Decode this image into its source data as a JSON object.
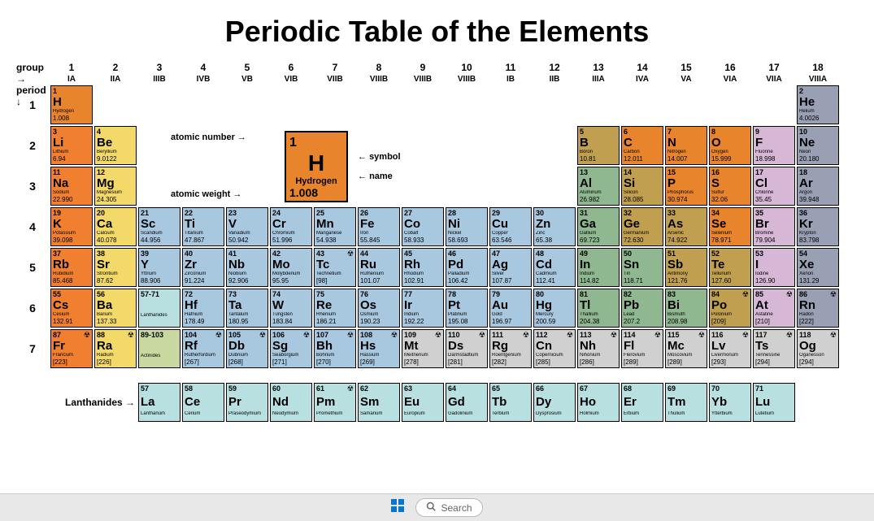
{
  "title": "Periodic Table of the Elements",
  "labels": {
    "group": "group",
    "period": "period",
    "lanthanides": "Lanthanides →"
  },
  "legend": {
    "atomic_number_label": "atomic number →",
    "symbol_label": "symbol",
    "name_label": "name",
    "atomic_weight_label": "atomic weight →",
    "example": {
      "z": "1",
      "sym": "H",
      "nm": "Hydrogen",
      "wt": "1.008"
    }
  },
  "colors": {
    "nonmetal": "#e8842c",
    "alkali": "#f08030",
    "alkaline_earth": "#f2d96a",
    "transition": "#a8c8e0",
    "post_transition": "#8fb890",
    "metalloid": "#c0a050",
    "halogen": "#d6b8d6",
    "noble_gas": "#9aa0b4",
    "lanthanide": "#b8e0e0",
    "actinide": "#c8d8a0",
    "unknown": "#d0d0d0"
  },
  "groups": [
    {
      "n": "1",
      "r": "IA"
    },
    {
      "n": "2",
      "r": "IIA"
    },
    {
      "n": "3",
      "r": "IIIB"
    },
    {
      "n": "4",
      "r": "IVB"
    },
    {
      "n": "5",
      "r": "VB"
    },
    {
      "n": "6",
      "r": "VIB"
    },
    {
      "n": "7",
      "r": "VIIB"
    },
    {
      "n": "8",
      "r": "VIIIB"
    },
    {
      "n": "9",
      "r": "VIIIB"
    },
    {
      "n": "10",
      "r": "VIIIB"
    },
    {
      "n": "11",
      "r": "IB"
    },
    {
      "n": "12",
      "r": "IIB"
    },
    {
      "n": "13",
      "r": "IIIA"
    },
    {
      "n": "14",
      "r": "IVA"
    },
    {
      "n": "15",
      "r": "VA"
    },
    {
      "n": "16",
      "r": "VIA"
    },
    {
      "n": "17",
      "r": "VIIA"
    },
    {
      "n": "18",
      "r": "VIIIA"
    }
  ],
  "periods": [
    "1",
    "2",
    "3",
    "4",
    "5",
    "6",
    "7"
  ],
  "elements": [
    {
      "z": 1,
      "sym": "H",
      "nm": "Hydrogen",
      "wt": "1.008",
      "g": 1,
      "p": 1,
      "cat": "nonmetal"
    },
    {
      "z": 2,
      "sym": "He",
      "nm": "Helium",
      "wt": "4.0026",
      "g": 18,
      "p": 1,
      "cat": "noble_gas"
    },
    {
      "z": 3,
      "sym": "Li",
      "nm": "Lithium",
      "wt": "6.94",
      "g": 1,
      "p": 2,
      "cat": "alkali"
    },
    {
      "z": 4,
      "sym": "Be",
      "nm": "Beryllium",
      "wt": "9.0122",
      "g": 2,
      "p": 2,
      "cat": "alkaline_earth"
    },
    {
      "z": 5,
      "sym": "B",
      "nm": "Boron",
      "wt": "10.81",
      "g": 13,
      "p": 2,
      "cat": "metalloid"
    },
    {
      "z": 6,
      "sym": "C",
      "nm": "Carbon",
      "wt": "12.011",
      "g": 14,
      "p": 2,
      "cat": "nonmetal"
    },
    {
      "z": 7,
      "sym": "N",
      "nm": "Nitrogen",
      "wt": "14.007",
      "g": 15,
      "p": 2,
      "cat": "nonmetal"
    },
    {
      "z": 8,
      "sym": "O",
      "nm": "Oxygen",
      "wt": "15.999",
      "g": 16,
      "p": 2,
      "cat": "nonmetal"
    },
    {
      "z": 9,
      "sym": "F",
      "nm": "Fluorine",
      "wt": "18.998",
      "g": 17,
      "p": 2,
      "cat": "halogen"
    },
    {
      "z": 10,
      "sym": "Ne",
      "nm": "Neon",
      "wt": "20.180",
      "g": 18,
      "p": 2,
      "cat": "noble_gas"
    },
    {
      "z": 11,
      "sym": "Na",
      "nm": "Sodium",
      "wt": "22.990",
      "g": 1,
      "p": 3,
      "cat": "alkali"
    },
    {
      "z": 12,
      "sym": "Mg",
      "nm": "Magnesium",
      "wt": "24.305",
      "g": 2,
      "p": 3,
      "cat": "alkaline_earth"
    },
    {
      "z": 13,
      "sym": "Al",
      "nm": "Aluminum",
      "wt": "26.982",
      "g": 13,
      "p": 3,
      "cat": "post_transition"
    },
    {
      "z": 14,
      "sym": "Si",
      "nm": "Silicon",
      "wt": "28.085",
      "g": 14,
      "p": 3,
      "cat": "metalloid"
    },
    {
      "z": 15,
      "sym": "P",
      "nm": "Phosphorus",
      "wt": "30.974",
      "g": 15,
      "p": 3,
      "cat": "nonmetal"
    },
    {
      "z": 16,
      "sym": "S",
      "nm": "Sulfur",
      "wt": "32.06",
      "g": 16,
      "p": 3,
      "cat": "nonmetal"
    },
    {
      "z": 17,
      "sym": "Cl",
      "nm": "Chlorine",
      "wt": "35.45",
      "g": 17,
      "p": 3,
      "cat": "halogen"
    },
    {
      "z": 18,
      "sym": "Ar",
      "nm": "Argon",
      "wt": "39.948",
      "g": 18,
      "p": 3,
      "cat": "noble_gas"
    },
    {
      "z": 19,
      "sym": "K",
      "nm": "Potassium",
      "wt": "39.098",
      "g": 1,
      "p": 4,
      "cat": "alkali"
    },
    {
      "z": 20,
      "sym": "Ca",
      "nm": "Calcium",
      "wt": "40.078",
      "g": 2,
      "p": 4,
      "cat": "alkaline_earth"
    },
    {
      "z": 21,
      "sym": "Sc",
      "nm": "Scandium",
      "wt": "44.956",
      "g": 3,
      "p": 4,
      "cat": "transition"
    },
    {
      "z": 22,
      "sym": "Ti",
      "nm": "Titanium",
      "wt": "47.867",
      "g": 4,
      "p": 4,
      "cat": "transition"
    },
    {
      "z": 23,
      "sym": "V",
      "nm": "Vanadium",
      "wt": "50.942",
      "g": 5,
      "p": 4,
      "cat": "transition"
    },
    {
      "z": 24,
      "sym": "Cr",
      "nm": "Chromium",
      "wt": "51.996",
      "g": 6,
      "p": 4,
      "cat": "transition"
    },
    {
      "z": 25,
      "sym": "Mn",
      "nm": "Manganese",
      "wt": "54.938",
      "g": 7,
      "p": 4,
      "cat": "transition"
    },
    {
      "z": 26,
      "sym": "Fe",
      "nm": "Iron",
      "wt": "55.845",
      "g": 8,
      "p": 4,
      "cat": "transition"
    },
    {
      "z": 27,
      "sym": "Co",
      "nm": "Cobalt",
      "wt": "58.933",
      "g": 9,
      "p": 4,
      "cat": "transition"
    },
    {
      "z": 28,
      "sym": "Ni",
      "nm": "Nickel",
      "wt": "58.693",
      "g": 10,
      "p": 4,
      "cat": "transition"
    },
    {
      "z": 29,
      "sym": "Cu",
      "nm": "Copper",
      "wt": "63.546",
      "g": 11,
      "p": 4,
      "cat": "transition"
    },
    {
      "z": 30,
      "sym": "Zn",
      "nm": "Zinc",
      "wt": "65.38",
      "g": 12,
      "p": 4,
      "cat": "transition"
    },
    {
      "z": 31,
      "sym": "Ga",
      "nm": "Gallium",
      "wt": "69.723",
      "g": 13,
      "p": 4,
      "cat": "post_transition"
    },
    {
      "z": 32,
      "sym": "Ge",
      "nm": "Germanium",
      "wt": "72.630",
      "g": 14,
      "p": 4,
      "cat": "metalloid"
    },
    {
      "z": 33,
      "sym": "As",
      "nm": "Arsenic",
      "wt": "74.922",
      "g": 15,
      "p": 4,
      "cat": "metalloid"
    },
    {
      "z": 34,
      "sym": "Se",
      "nm": "Selenium",
      "wt": "78.971",
      "g": 16,
      "p": 4,
      "cat": "nonmetal"
    },
    {
      "z": 35,
      "sym": "Br",
      "nm": "Bromine",
      "wt": "79.904",
      "g": 17,
      "p": 4,
      "cat": "halogen"
    },
    {
      "z": 36,
      "sym": "Kr",
      "nm": "Krypton",
      "wt": "83.798",
      "g": 18,
      "p": 4,
      "cat": "noble_gas"
    },
    {
      "z": 37,
      "sym": "Rb",
      "nm": "Rubidium",
      "wt": "85.468",
      "g": 1,
      "p": 5,
      "cat": "alkali"
    },
    {
      "z": 38,
      "sym": "Sr",
      "nm": "Strontium",
      "wt": "87.62",
      "g": 2,
      "p": 5,
      "cat": "alkaline_earth"
    },
    {
      "z": 39,
      "sym": "Y",
      "nm": "Yttrium",
      "wt": "88.906",
      "g": 3,
      "p": 5,
      "cat": "transition"
    },
    {
      "z": 40,
      "sym": "Zr",
      "nm": "Zirconium",
      "wt": "91.224",
      "g": 4,
      "p": 5,
      "cat": "transition"
    },
    {
      "z": 41,
      "sym": "Nb",
      "nm": "Niobium",
      "wt": "92.906",
      "g": 5,
      "p": 5,
      "cat": "transition"
    },
    {
      "z": 42,
      "sym": "Mo",
      "nm": "Molybdenum",
      "wt": "95.95",
      "g": 6,
      "p": 5,
      "cat": "transition"
    },
    {
      "z": 43,
      "sym": "Tc",
      "nm": "Technetium",
      "wt": "[98]",
      "g": 7,
      "p": 5,
      "cat": "transition",
      "radio": true
    },
    {
      "z": 44,
      "sym": "Ru",
      "nm": "Ruthenium",
      "wt": "101.07",
      "g": 8,
      "p": 5,
      "cat": "transition"
    },
    {
      "z": 45,
      "sym": "Rh",
      "nm": "Rhodium",
      "wt": "102.91",
      "g": 9,
      "p": 5,
      "cat": "transition"
    },
    {
      "z": 46,
      "sym": "Pd",
      "nm": "Palladium",
      "wt": "106.42",
      "g": 10,
      "p": 5,
      "cat": "transition"
    },
    {
      "z": 47,
      "sym": "Ag",
      "nm": "Silver",
      "wt": "107.87",
      "g": 11,
      "p": 5,
      "cat": "transition"
    },
    {
      "z": 48,
      "sym": "Cd",
      "nm": "Cadmium",
      "wt": "112.41",
      "g": 12,
      "p": 5,
      "cat": "transition"
    },
    {
      "z": 49,
      "sym": "In",
      "nm": "Indium",
      "wt": "114.82",
      "g": 13,
      "p": 5,
      "cat": "post_transition"
    },
    {
      "z": 50,
      "sym": "Sn",
      "nm": "Tin",
      "wt": "118.71",
      "g": 14,
      "p": 5,
      "cat": "post_transition"
    },
    {
      "z": 51,
      "sym": "Sb",
      "nm": "Antimony",
      "wt": "121.76",
      "g": 15,
      "p": 5,
      "cat": "metalloid"
    },
    {
      "z": 52,
      "sym": "Te",
      "nm": "Tellurium",
      "wt": "127.60",
      "g": 16,
      "p": 5,
      "cat": "metalloid"
    },
    {
      "z": 53,
      "sym": "I",
      "nm": "Iodine",
      "wt": "126.90",
      "g": 17,
      "p": 5,
      "cat": "halogen"
    },
    {
      "z": 54,
      "sym": "Xe",
      "nm": "Xenon",
      "wt": "131.29",
      "g": 18,
      "p": 5,
      "cat": "noble_gas"
    },
    {
      "z": 55,
      "sym": "Cs",
      "nm": "Cesium",
      "wt": "132.91",
      "g": 1,
      "p": 6,
      "cat": "alkali"
    },
    {
      "z": 56,
      "sym": "Ba",
      "nm": "Barium",
      "wt": "137.33",
      "g": 2,
      "p": 6,
      "cat": "alkaline_earth"
    },
    {
      "z": "57-71",
      "sym": "",
      "nm": "Lanthanides",
      "wt": "",
      "g": 3,
      "p": 6,
      "cat": "lanthanide"
    },
    {
      "z": 72,
      "sym": "Hf",
      "nm": "Hafnium",
      "wt": "178.49",
      "g": 4,
      "p": 6,
      "cat": "transition"
    },
    {
      "z": 73,
      "sym": "Ta",
      "nm": "Tantalum",
      "wt": "180.95",
      "g": 5,
      "p": 6,
      "cat": "transition"
    },
    {
      "z": 74,
      "sym": "W",
      "nm": "Tungsten",
      "wt": "183.84",
      "g": 6,
      "p": 6,
      "cat": "transition"
    },
    {
      "z": 75,
      "sym": "Re",
      "nm": "Rhenium",
      "wt": "186.21",
      "g": 7,
      "p": 6,
      "cat": "transition"
    },
    {
      "z": 76,
      "sym": "Os",
      "nm": "Osmium",
      "wt": "190.23",
      "g": 8,
      "p": 6,
      "cat": "transition"
    },
    {
      "z": 77,
      "sym": "Ir",
      "nm": "Iridium",
      "wt": "192.22",
      "g": 9,
      "p": 6,
      "cat": "transition"
    },
    {
      "z": 78,
      "sym": "Pt",
      "nm": "Platinum",
      "wt": "195.08",
      "g": 10,
      "p": 6,
      "cat": "transition"
    },
    {
      "z": 79,
      "sym": "Au",
      "nm": "Gold",
      "wt": "196.97",
      "g": 11,
      "p": 6,
      "cat": "transition"
    },
    {
      "z": 80,
      "sym": "Hg",
      "nm": "Mercury",
      "wt": "200.59",
      "g": 12,
      "p": 6,
      "cat": "transition"
    },
    {
      "z": 81,
      "sym": "Tl",
      "nm": "Thallium",
      "wt": "204.38",
      "g": 13,
      "p": 6,
      "cat": "post_transition"
    },
    {
      "z": 82,
      "sym": "Pb",
      "nm": "Lead",
      "wt": "207.2",
      "g": 14,
      "p": 6,
      "cat": "post_transition"
    },
    {
      "z": 83,
      "sym": "Bi",
      "nm": "Bismuth",
      "wt": "208.98",
      "g": 15,
      "p": 6,
      "cat": "post_transition"
    },
    {
      "z": 84,
      "sym": "Po",
      "nm": "Polonium",
      "wt": "[209]",
      "g": 16,
      "p": 6,
      "cat": "metalloid",
      "radio": true
    },
    {
      "z": 85,
      "sym": "At",
      "nm": "Astatine",
      "wt": "[210]",
      "g": 17,
      "p": 6,
      "cat": "halogen",
      "radio": true
    },
    {
      "z": 86,
      "sym": "Rn",
      "nm": "Radon",
      "wt": "[222]",
      "g": 18,
      "p": 6,
      "cat": "noble_gas",
      "radio": true
    },
    {
      "z": 87,
      "sym": "Fr",
      "nm": "Francium",
      "wt": "[223]",
      "g": 1,
      "p": 7,
      "cat": "alkali",
      "radio": true
    },
    {
      "z": 88,
      "sym": "Ra",
      "nm": "Radium",
      "wt": "[226]",
      "g": 2,
      "p": 7,
      "cat": "alkaline_earth",
      "radio": true
    },
    {
      "z": "89-103",
      "sym": "",
      "nm": "Actinides",
      "wt": "",
      "g": 3,
      "p": 7,
      "cat": "actinide"
    },
    {
      "z": 104,
      "sym": "Rf",
      "nm": "Rutherfordium",
      "wt": "[267]",
      "g": 4,
      "p": 7,
      "cat": "transition",
      "radio": true
    },
    {
      "z": 105,
      "sym": "Db",
      "nm": "Dubnium",
      "wt": "[268]",
      "g": 5,
      "p": 7,
      "cat": "transition",
      "radio": true
    },
    {
      "z": 106,
      "sym": "Sg",
      "nm": "Seaborgium",
      "wt": "[271]",
      "g": 6,
      "p": 7,
      "cat": "transition",
      "radio": true
    },
    {
      "z": 107,
      "sym": "Bh",
      "nm": "Bohrium",
      "wt": "[270]",
      "g": 7,
      "p": 7,
      "cat": "transition",
      "radio": true
    },
    {
      "z": 108,
      "sym": "Hs",
      "nm": "Hassium",
      "wt": "[269]",
      "g": 8,
      "p": 7,
      "cat": "transition",
      "radio": true
    },
    {
      "z": 109,
      "sym": "Mt",
      "nm": "Meitnerium",
      "wt": "[278]",
      "g": 9,
      "p": 7,
      "cat": "unknown",
      "radio": true
    },
    {
      "z": 110,
      "sym": "Ds",
      "nm": "Darmstadtium",
      "wt": "[281]",
      "g": 10,
      "p": 7,
      "cat": "unknown",
      "radio": true
    },
    {
      "z": 111,
      "sym": "Rg",
      "nm": "Roentgenium",
      "wt": "[282]",
      "g": 11,
      "p": 7,
      "cat": "unknown",
      "radio": true
    },
    {
      "z": 112,
      "sym": "Cn",
      "nm": "Copernicium",
      "wt": "[285]",
      "g": 12,
      "p": 7,
      "cat": "unknown",
      "radio": true
    },
    {
      "z": 113,
      "sym": "Nh",
      "nm": "Nihonium",
      "wt": "[286]",
      "g": 13,
      "p": 7,
      "cat": "unknown",
      "radio": true
    },
    {
      "z": 114,
      "sym": "Fl",
      "nm": "Flerovium",
      "wt": "[289]",
      "g": 14,
      "p": 7,
      "cat": "unknown",
      "radio": true
    },
    {
      "z": 115,
      "sym": "Mc",
      "nm": "Moscovium",
      "wt": "[289]",
      "g": 15,
      "p": 7,
      "cat": "unknown",
      "radio": true
    },
    {
      "z": 116,
      "sym": "Lv",
      "nm": "Livermorium",
      "wt": "[293]",
      "g": 16,
      "p": 7,
      "cat": "unknown",
      "radio": true
    },
    {
      "z": 117,
      "sym": "Ts",
      "nm": "Tennessine",
      "wt": "[294]",
      "g": 17,
      "p": 7,
      "cat": "unknown",
      "radio": true
    },
    {
      "z": 118,
      "sym": "Og",
      "nm": "Oganesson",
      "wt": "[294]",
      "g": 18,
      "p": 7,
      "cat": "unknown",
      "radio": true
    }
  ],
  "lanthanides": [
    {
      "z": 57,
      "sym": "La",
      "nm": "Lanthanum"
    },
    {
      "z": 58,
      "sym": "Ce",
      "nm": "Cerium"
    },
    {
      "z": 59,
      "sym": "Pr",
      "nm": "Praseodymium"
    },
    {
      "z": 60,
      "sym": "Nd",
      "nm": "Neodymium"
    },
    {
      "z": 61,
      "sym": "Pm",
      "nm": "Promethium",
      "radio": true
    },
    {
      "z": 62,
      "sym": "Sm",
      "nm": "Samarium"
    },
    {
      "z": 63,
      "sym": "Eu",
      "nm": "Europium"
    },
    {
      "z": 64,
      "sym": "Gd",
      "nm": "Gadolinium"
    },
    {
      "z": 65,
      "sym": "Tb",
      "nm": "Terbium"
    },
    {
      "z": 66,
      "sym": "Dy",
      "nm": "Dysprosium"
    },
    {
      "z": 67,
      "sym": "Ho",
      "nm": "Holmium"
    },
    {
      "z": 68,
      "sym": "Er",
      "nm": "Erbium"
    },
    {
      "z": 69,
      "sym": "Tm",
      "nm": "Thulium"
    },
    {
      "z": 70,
      "sym": "Yb",
      "nm": "Ytterbium"
    },
    {
      "z": 71,
      "sym": "Lu",
      "nm": "Lutetium"
    }
  ],
  "taskbar": {
    "search_placeholder": "Search"
  }
}
